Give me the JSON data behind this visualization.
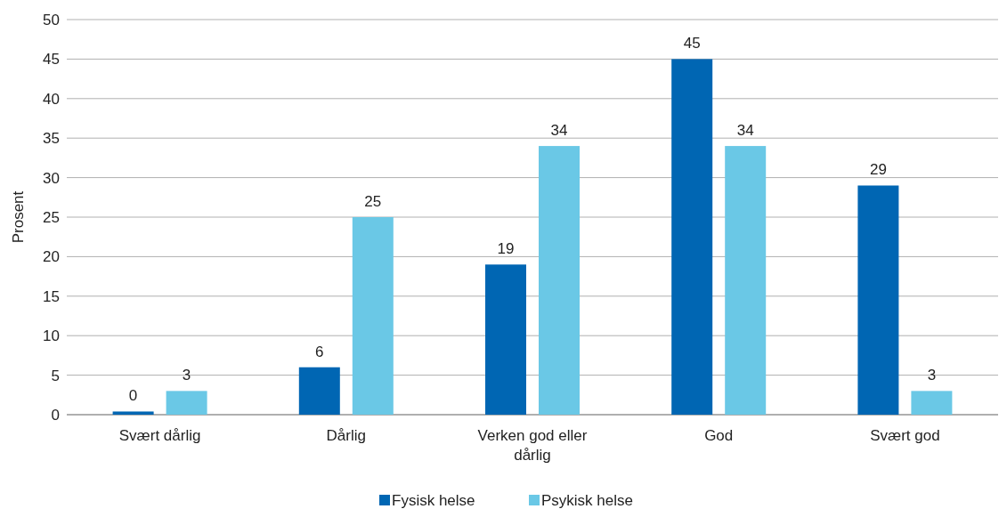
{
  "chart_data": {
    "type": "bar",
    "ylabel": "Prosent",
    "categories": [
      "Svært dårlig",
      "Dårlig",
      "Verken god eller dårlig",
      "God",
      "Svært god"
    ],
    "series": [
      {
        "name": "Fysisk helse",
        "color": "#0066b3",
        "values": [
          0.4,
          6,
          19,
          45,
          29
        ],
        "value_labels": [
          "0",
          "6",
          "19",
          "45",
          "29"
        ]
      },
      {
        "name": "Psykisk helse",
        "color": "#6ac8e6",
        "values": [
          3,
          25,
          34,
          34,
          3
        ]
      }
    ],
    "ylim": [
      0,
      50
    ],
    "yticks": [
      0,
      5,
      10,
      15,
      20,
      25,
      30,
      35,
      40,
      45,
      50
    ],
    "grid": "y",
    "legend": "bottom",
    "data_labels": true
  }
}
